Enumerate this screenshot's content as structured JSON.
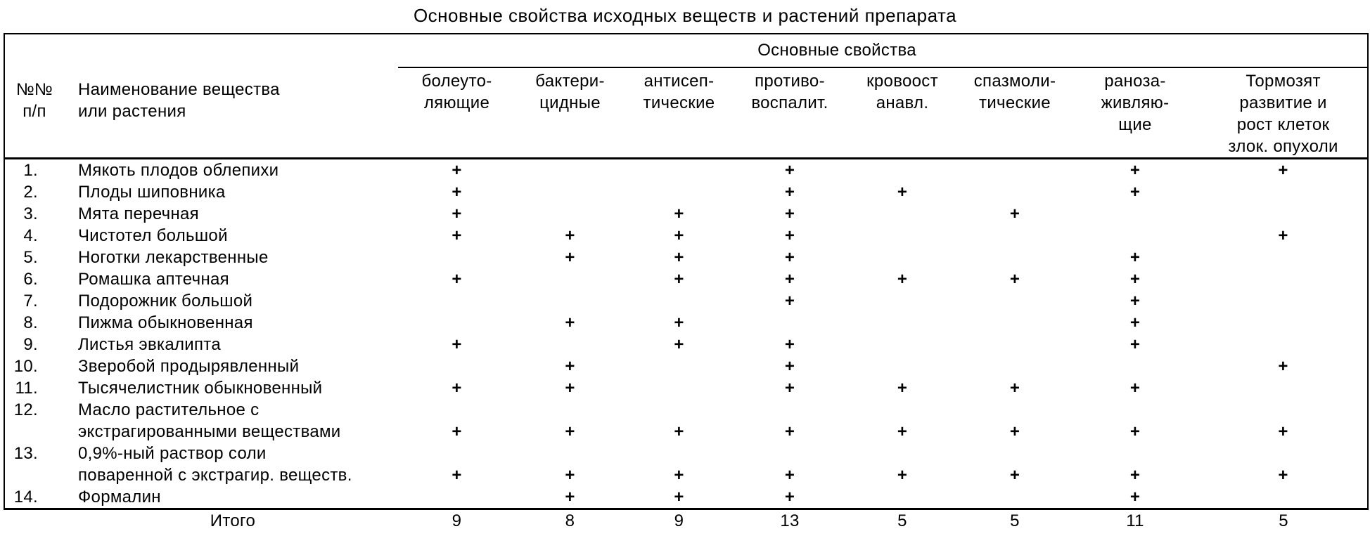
{
  "title": "Основные свойства исходных веществ и растений препарата",
  "table": {
    "header": {
      "num_col": [
        "№№",
        "п/п"
      ],
      "name_col": [
        "Наименование вещества",
        "или растения"
      ],
      "group_label": "Основные свойства",
      "properties": [
        {
          "name": "analgesic",
          "lines": [
            "болеуто-",
            "ляющие"
          ]
        },
        {
          "name": "bactericidal",
          "lines": [
            "бактери-",
            "цидные"
          ]
        },
        {
          "name": "antiseptic",
          "lines": [
            "антисеп-",
            "тические"
          ]
        },
        {
          "name": "anti-inflammatory",
          "lines": [
            "противо-",
            "воспалит."
          ]
        },
        {
          "name": "hemostatic",
          "lines": [
            "кровоост",
            "анавл."
          ]
        },
        {
          "name": "spasmolytic",
          "lines": [
            "спазмоли-",
            "тические"
          ]
        },
        {
          "name": "wound-healing",
          "lines": [
            "раноза-",
            "живляю-",
            "щие"
          ]
        },
        {
          "name": "tumor-inhibiting",
          "lines": [
            "Тормозят",
            "развитие и",
            "рост клеток",
            "злок. опухоли"
          ]
        }
      ]
    },
    "mark_symbol": "+",
    "rows": [
      {
        "num": "1.",
        "name_lines": [
          "Мякоть плодов облепихи"
        ],
        "marks": [
          1,
          0,
          0,
          1,
          0,
          0,
          1,
          1
        ]
      },
      {
        "num": "2.",
        "name_lines": [
          "Плоды шиповника"
        ],
        "marks": [
          1,
          0,
          0,
          1,
          1,
          0,
          1,
          0
        ]
      },
      {
        "num": "3.",
        "name_lines": [
          "Мята перечная"
        ],
        "marks": [
          1,
          0,
          1,
          1,
          0,
          1,
          0,
          0
        ]
      },
      {
        "num": "4.",
        "name_lines": [
          "Чистотел большой"
        ],
        "marks": [
          1,
          1,
          1,
          1,
          0,
          0,
          0,
          1
        ]
      },
      {
        "num": "5.",
        "name_lines": [
          "Ноготки лекарственные"
        ],
        "marks": [
          0,
          1,
          1,
          1,
          0,
          0,
          1,
          0
        ]
      },
      {
        "num": "6.",
        "name_lines": [
          "Ромашка аптечная"
        ],
        "marks": [
          1,
          0,
          1,
          1,
          1,
          1,
          1,
          0
        ]
      },
      {
        "num": "7.",
        "name_lines": [
          "Подорожник большой"
        ],
        "marks": [
          0,
          0,
          0,
          1,
          0,
          0,
          1,
          0
        ]
      },
      {
        "num": "8.",
        "name_lines": [
          "Пижма обыкновенная"
        ],
        "marks": [
          0,
          1,
          1,
          0,
          0,
          0,
          1,
          0
        ]
      },
      {
        "num": "9.",
        "name_lines": [
          "Листья эвкалипта"
        ],
        "marks": [
          1,
          0,
          1,
          1,
          0,
          0,
          1,
          0
        ]
      },
      {
        "num": "10.",
        "name_lines": [
          "Зверобой продырявленный"
        ],
        "marks": [
          0,
          1,
          0,
          1,
          0,
          0,
          0,
          1
        ]
      },
      {
        "num": "11.",
        "name_lines": [
          "Тысячелистник обыкновенный"
        ],
        "marks": [
          1,
          1,
          0,
          1,
          1,
          1,
          1,
          0
        ]
      },
      {
        "num": "12.",
        "name_lines": [
          "Масло растительное с",
          "экстрагированными веществами"
        ],
        "marks": [
          1,
          1,
          1,
          1,
          1,
          1,
          1,
          1
        ]
      },
      {
        "num": "13.",
        "name_lines": [
          "0,9%-ный раствор соли",
          "поваренной с экстрагир. веществ."
        ],
        "marks": [
          1,
          1,
          1,
          1,
          1,
          1,
          1,
          1
        ]
      },
      {
        "num": "14.",
        "name_lines": [
          "Формалин"
        ],
        "marks": [
          0,
          1,
          1,
          1,
          0,
          0,
          1,
          0
        ]
      }
    ],
    "footer": {
      "label": "Итого",
      "totals": [
        9,
        8,
        9,
        13,
        5,
        5,
        11,
        5
      ]
    }
  }
}
